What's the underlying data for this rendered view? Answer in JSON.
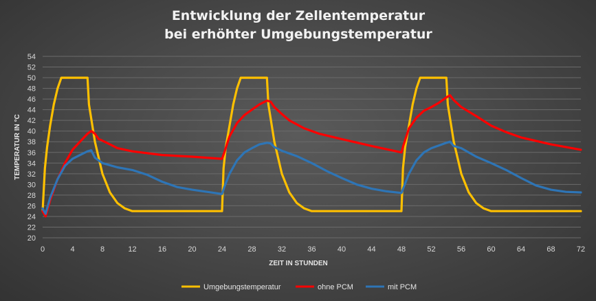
{
  "chart_data": {
    "type": "line",
    "title": [
      "Entwicklung der Zellentemperatur",
      "bei erhöhter Umgebungstemperatur"
    ],
    "xlabel": "ZEIT IN STUNDEN",
    "ylabel": "TEMPERATUR IN °C",
    "xlim": [
      0,
      72
    ],
    "ylim": [
      20,
      54
    ],
    "xticks": [
      0,
      4,
      8,
      12,
      16,
      20,
      24,
      28,
      32,
      36,
      40,
      44,
      48,
      52,
      56,
      60,
      64,
      68,
      72
    ],
    "yticks": [
      20,
      22,
      24,
      26,
      28,
      30,
      32,
      34,
      36,
      38,
      40,
      42,
      44,
      46,
      48,
      50,
      52,
      54
    ],
    "grid": "horizontal",
    "legend_position": "bottom",
    "series": [
      {
        "name": "Umgebungstemperatur",
        "color": "#ffc000",
        "x": [
          0,
          0.3,
          0.6,
          1,
          1.5,
          2,
          2.5,
          3,
          5,
          6,
          6.2,
          7,
          8,
          9,
          10,
          11,
          12,
          24,
          24.2,
          24.5,
          25,
          25.5,
          26,
          26.5,
          27,
          29,
          30,
          30.2,
          31,
          32,
          33,
          34,
          35,
          36,
          48,
          48.2,
          48.5,
          49,
          49.5,
          50,
          50.5,
          51,
          53,
          54,
          54.2,
          55,
          56,
          57,
          58,
          59,
          60,
          72
        ],
        "y": [
          25,
          33,
          37,
          41,
          45,
          48,
          50,
          50,
          50,
          50,
          45,
          38,
          32,
          28.5,
          26.5,
          25.5,
          25,
          25,
          33,
          37,
          41,
          45,
          48,
          50,
          50,
          50,
          50,
          45,
          38,
          32,
          28.5,
          26.5,
          25.5,
          25,
          25,
          33,
          37,
          41,
          45,
          48,
          50,
          50,
          50,
          50,
          45,
          38,
          32,
          28.5,
          26.5,
          25.5,
          25,
          25
        ]
      },
      {
        "name": "ohne PCM",
        "color": "#ff0000",
        "x": [
          0,
          0.4,
          1,
          2,
          3,
          4,
          5,
          6,
          6.5,
          7,
          7.5,
          8,
          9,
          10,
          12,
          16,
          20,
          24,
          24.3,
          25,
          26,
          27,
          28,
          29,
          30,
          30.5,
          31,
          32,
          33,
          35,
          37,
          40,
          44,
          48,
          48.3,
          49,
          50,
          51,
          52,
          53,
          54,
          54.5,
          55,
          56,
          58,
          60,
          62,
          64,
          68,
          72
        ],
        "y": [
          25,
          24,
          27,
          31,
          34,
          36.5,
          38,
          39.5,
          40,
          39.5,
          38.5,
          38.2,
          37.5,
          36.8,
          36.2,
          35.5,
          35.2,
          34.8,
          36,
          39,
          41.5,
          43,
          44,
          45,
          45.7,
          45.5,
          44.5,
          43.2,
          42,
          40.5,
          39.5,
          38.5,
          37.2,
          36,
          37.5,
          40.5,
          42.5,
          43.8,
          44.5,
          45.3,
          46.3,
          46.7,
          45.8,
          44.5,
          42.8,
          41,
          39.8,
          38.8,
          37.5,
          36.5
        ]
      },
      {
        "name": "mit PCM",
        "color": "#2e75b6",
        "x": [
          0,
          0.4,
          1,
          2,
          3,
          4,
          5,
          6,
          6.5,
          7,
          8,
          10,
          12,
          14,
          16,
          18,
          20,
          22,
          24,
          24.3,
          25,
          26,
          27,
          28,
          29,
          30,
          30.5,
          31,
          32,
          34,
          36,
          38,
          40,
          42,
          44,
          46,
          48,
          48.3,
          49,
          50,
          51,
          52,
          53,
          54,
          54.5,
          55,
          56,
          58,
          60,
          62,
          64,
          66,
          68,
          70,
          72
        ],
        "y": [
          25.5,
          24.5,
          27.5,
          31,
          33.5,
          34.8,
          35.5,
          36.2,
          36.4,
          35,
          34,
          33.2,
          32.7,
          31.8,
          30.5,
          29.5,
          29,
          28.6,
          28.2,
          29.5,
          32,
          34.5,
          36,
          36.8,
          37.5,
          37.8,
          37.7,
          37,
          36.3,
          35.3,
          34,
          32.5,
          31.2,
          30,
          29.2,
          28.7,
          28.4,
          29.5,
          32,
          34.5,
          36,
          36.8,
          37.3,
          37.8,
          38,
          37.2,
          36.8,
          35.2,
          34,
          32.7,
          31.2,
          29.8,
          29,
          28.6,
          28.5
        ]
      }
    ]
  }
}
